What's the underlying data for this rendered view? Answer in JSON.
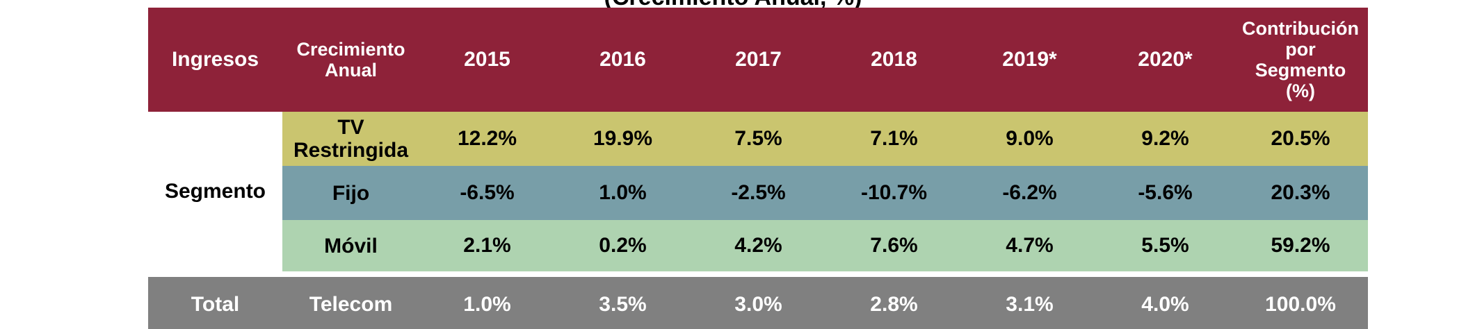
{
  "title": "(Crecimiento Anual, %)",
  "header": {
    "ingresos": "Ingresos",
    "crecimiento": [
      "Crecimiento",
      "Anual"
    ],
    "years": [
      "2015",
      "2016",
      "2017",
      "2018",
      "2019*",
      "2020*"
    ],
    "contribucion": [
      "Contribución",
      "por",
      "Segmento",
      "(%)"
    ]
  },
  "segment_label": "Segmento",
  "rows": [
    {
      "name": [
        "TV",
        "Restringida"
      ],
      "values": [
        "12.2%",
        "19.9%",
        "7.5%",
        "7.1%",
        "9.0%",
        "9.2%"
      ],
      "contribution": "20.5%",
      "color": "#cac56f"
    },
    {
      "name": [
        "Fijo"
      ],
      "values": [
        "-6.5%",
        "1.0%",
        "-2.5%",
        "-10.7%",
        "-6.2%",
        "-5.6%"
      ],
      "contribution": "20.3%",
      "color": "#789ea8"
    },
    {
      "name": [
        "Móvil"
      ],
      "values": [
        "2.1%",
        "0.2%",
        "4.2%",
        "7.6%",
        "4.7%",
        "5.5%"
      ],
      "contribution": "59.2%",
      "color": "#aed3b0"
    }
  ],
  "total": {
    "label": "Total",
    "name": "Telecom",
    "values": [
      "1.0%",
      "3.5%",
      "3.0%",
      "2.8%",
      "3.1%",
      "4.0%"
    ],
    "contribution": "100.0%"
  },
  "colors": {
    "header": "#8e2239",
    "total": "#808080"
  }
}
